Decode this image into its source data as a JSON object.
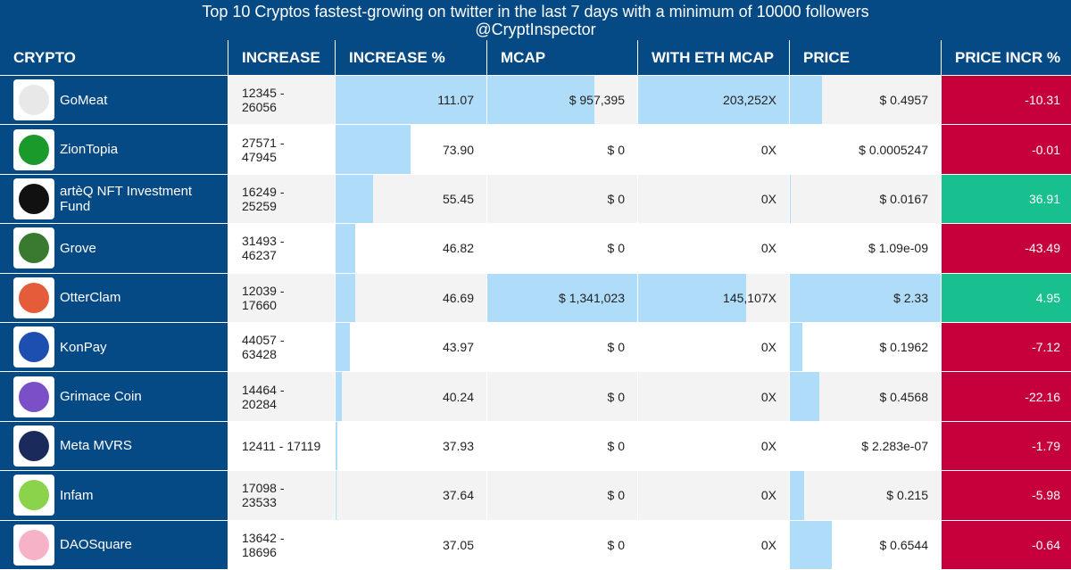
{
  "title": "Top 10 Cryptos fastest-growing on twitter in the last 7 days with a minimum of 10000 followers",
  "subtitle": "@CryptInspector",
  "table": {
    "columns": [
      "CRYPTO",
      "INCREASE",
      "INCREASE %",
      "MCAP",
      "WITH ETH MCAP",
      "PRICE",
      "PRICE INCR %"
    ],
    "rows": [
      {
        "crypto": "GoMeat",
        "increase": "12345 - 26056",
        "increase_pct": {
          "value": 111.07,
          "label": "111.07"
        },
        "mcap": {
          "value": 957395,
          "label": "$ 957,395"
        },
        "eth_mcap": {
          "value": 203252,
          "label": "203,252X"
        },
        "price": {
          "value": 0.4957,
          "label": "$ 0.4957"
        },
        "price_incr_pct": -10.31
      },
      {
        "crypto": "ZionTopia",
        "increase": "27571 - 47945",
        "increase_pct": {
          "value": 73.9,
          "label": "73.90"
        },
        "mcap": {
          "value": 0,
          "label": "$ 0"
        },
        "eth_mcap": {
          "value": 0,
          "label": "0X"
        },
        "price": {
          "value": 0.0005247,
          "label": "$ 0.0005247"
        },
        "price_incr_pct": -0.01
      },
      {
        "crypto": "artèQ NFT Investment Fund",
        "increase": "16249 - 25259",
        "increase_pct": {
          "value": 55.45,
          "label": "55.45"
        },
        "mcap": {
          "value": 0,
          "label": "$ 0"
        },
        "eth_mcap": {
          "value": 0,
          "label": "0X"
        },
        "price": {
          "value": 0.0167,
          "label": "$ 0.0167"
        },
        "price_incr_pct": 36.91
      },
      {
        "crypto": "Grove",
        "increase": "31493 - 46237",
        "increase_pct": {
          "value": 46.82,
          "label": "46.82"
        },
        "mcap": {
          "value": 0,
          "label": "$ 0"
        },
        "eth_mcap": {
          "value": 0,
          "label": "0X"
        },
        "price": {
          "value": 1.09e-09,
          "label": "$ 1.09e-09"
        },
        "price_incr_pct": -43.49
      },
      {
        "crypto": "OtterClam",
        "increase": "12039 - 17660",
        "increase_pct": {
          "value": 46.69,
          "label": "46.69"
        },
        "mcap": {
          "value": 1341023,
          "label": "$ 1,341,023"
        },
        "eth_mcap": {
          "value": 145107,
          "label": "145,107X"
        },
        "price": {
          "value": 2.33,
          "label": "$ 2.33"
        },
        "price_incr_pct": 4.95
      },
      {
        "crypto": "KonPay",
        "increase": "44057 - 63428",
        "increase_pct": {
          "value": 43.97,
          "label": "43.97"
        },
        "mcap": {
          "value": 0,
          "label": "$ 0"
        },
        "eth_mcap": {
          "value": 0,
          "label": "0X"
        },
        "price": {
          "value": 0.1962,
          "label": "$ 0.1962"
        },
        "price_incr_pct": -7.12
      },
      {
        "crypto": "Grimace Coin",
        "increase": "14464 - 20284",
        "increase_pct": {
          "value": 40.24,
          "label": "40.24"
        },
        "mcap": {
          "value": 0,
          "label": "$ 0"
        },
        "eth_mcap": {
          "value": 0,
          "label": "0X"
        },
        "price": {
          "value": 0.4568,
          "label": "$ 0.4568"
        },
        "price_incr_pct": -22.16
      },
      {
        "crypto": "Meta MVRS",
        "increase": "12411 - 17119",
        "increase_pct": {
          "value": 37.93,
          "label": "37.93"
        },
        "mcap": {
          "value": 0,
          "label": "$ 0"
        },
        "eth_mcap": {
          "value": 0,
          "label": "0X"
        },
        "price": {
          "value": 2.283e-07,
          "label": "$ 2.283e-07"
        },
        "price_incr_pct": -1.79
      },
      {
        "crypto": "Infam",
        "increase": "17098 - 23533",
        "increase_pct": {
          "value": 37.64,
          "label": "37.64"
        },
        "mcap": {
          "value": 0,
          "label": "$ 0"
        },
        "eth_mcap": {
          "value": 0,
          "label": "0X"
        },
        "price": {
          "value": 0.215,
          "label": "$ 0.215"
        },
        "price_incr_pct": -5.98
      },
      {
        "crypto": "DAOSquare",
        "increase": "13642 - 18696",
        "increase_pct": {
          "value": 37.05,
          "label": "37.05"
        },
        "mcap": {
          "value": 0,
          "label": "$ 0"
        },
        "eth_mcap": {
          "value": 0,
          "label": "0X"
        },
        "price": {
          "value": 0.6544,
          "label": "$ 0.6544"
        },
        "price_incr_pct": -0.64
      }
    ]
  }
}
